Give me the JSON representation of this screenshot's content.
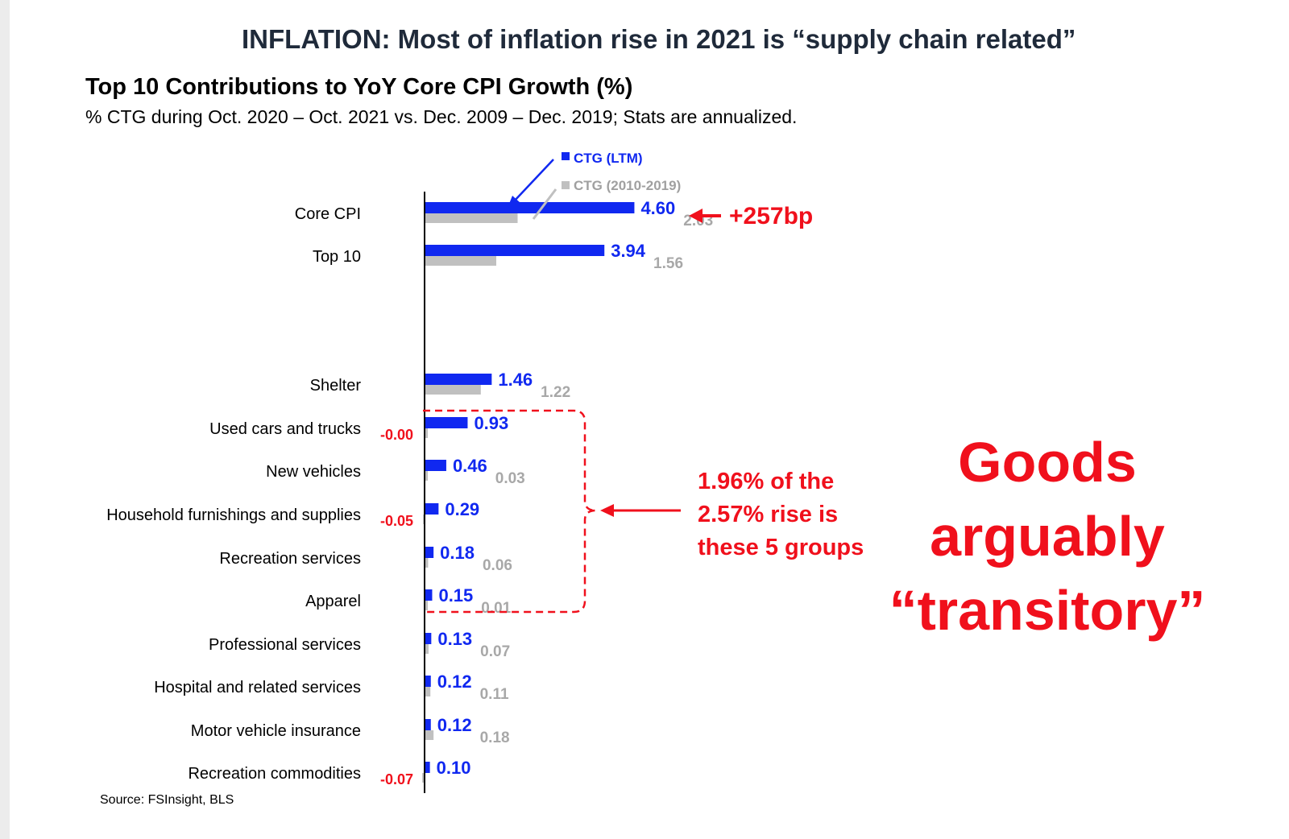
{
  "headline": "INFLATION: Most of inflation rise in 2021 is “supply chain related”",
  "source": "Source: FSInsight, BLS",
  "annotations": {
    "core_gap": "+257bp",
    "groups_note": [
      "1.96% of the",
      "2.57% rise is",
      "these 5 groups"
    ],
    "goods_note": [
      "Goods",
      "arguably",
      "“transitory”"
    ]
  },
  "colors": {
    "ltm": "#1028f0",
    "hist": "#c0c0c0",
    "accent": "#f0101c"
  },
  "chart_data": {
    "type": "bar",
    "orientation": "horizontal",
    "title": "Top 10 Contributions to YoY Core CPI Growth (%)",
    "subtitle": "% CTG during Oct. 2020 – Oct. 2021 vs. Dec. 2009 – Dec. 2019; Stats are annualized.",
    "legend_placement": "top",
    "categories": [
      "Core CPI",
      "Top 10",
      "Shelter",
      "Used cars and trucks",
      "New vehicles",
      "Household furnishings and supplies",
      "Recreation services",
      "Apparel",
      "Professional services",
      "Hospital and related services",
      "Motor vehicle insurance",
      "Recreation commodities"
    ],
    "series": [
      {
        "name": "CTG (LTM)",
        "values": [
          4.6,
          3.94,
          1.46,
          0.93,
          0.46,
          0.29,
          0.18,
          0.15,
          0.13,
          0.12,
          0.12,
          0.1
        ],
        "labels": [
          "4.60",
          "3.94",
          "1.46",
          "0.93",
          "0.46",
          "0.29",
          "0.18",
          "0.15",
          "0.13",
          "0.12",
          "0.12",
          "0.10"
        ]
      },
      {
        "name": "CTG (2010-2019)",
        "values": [
          2.03,
          1.56,
          1.22,
          -0.0,
          0.03,
          -0.05,
          0.06,
          0.01,
          0.07,
          0.11,
          0.18,
          -0.07
        ],
        "labels": [
          "2.03",
          "1.56",
          "1.22",
          "-0.00",
          "0.03",
          "-0.05",
          "0.06",
          "0.01",
          "0.07",
          "0.11",
          "0.18",
          "-0.07"
        ]
      }
    ]
  }
}
